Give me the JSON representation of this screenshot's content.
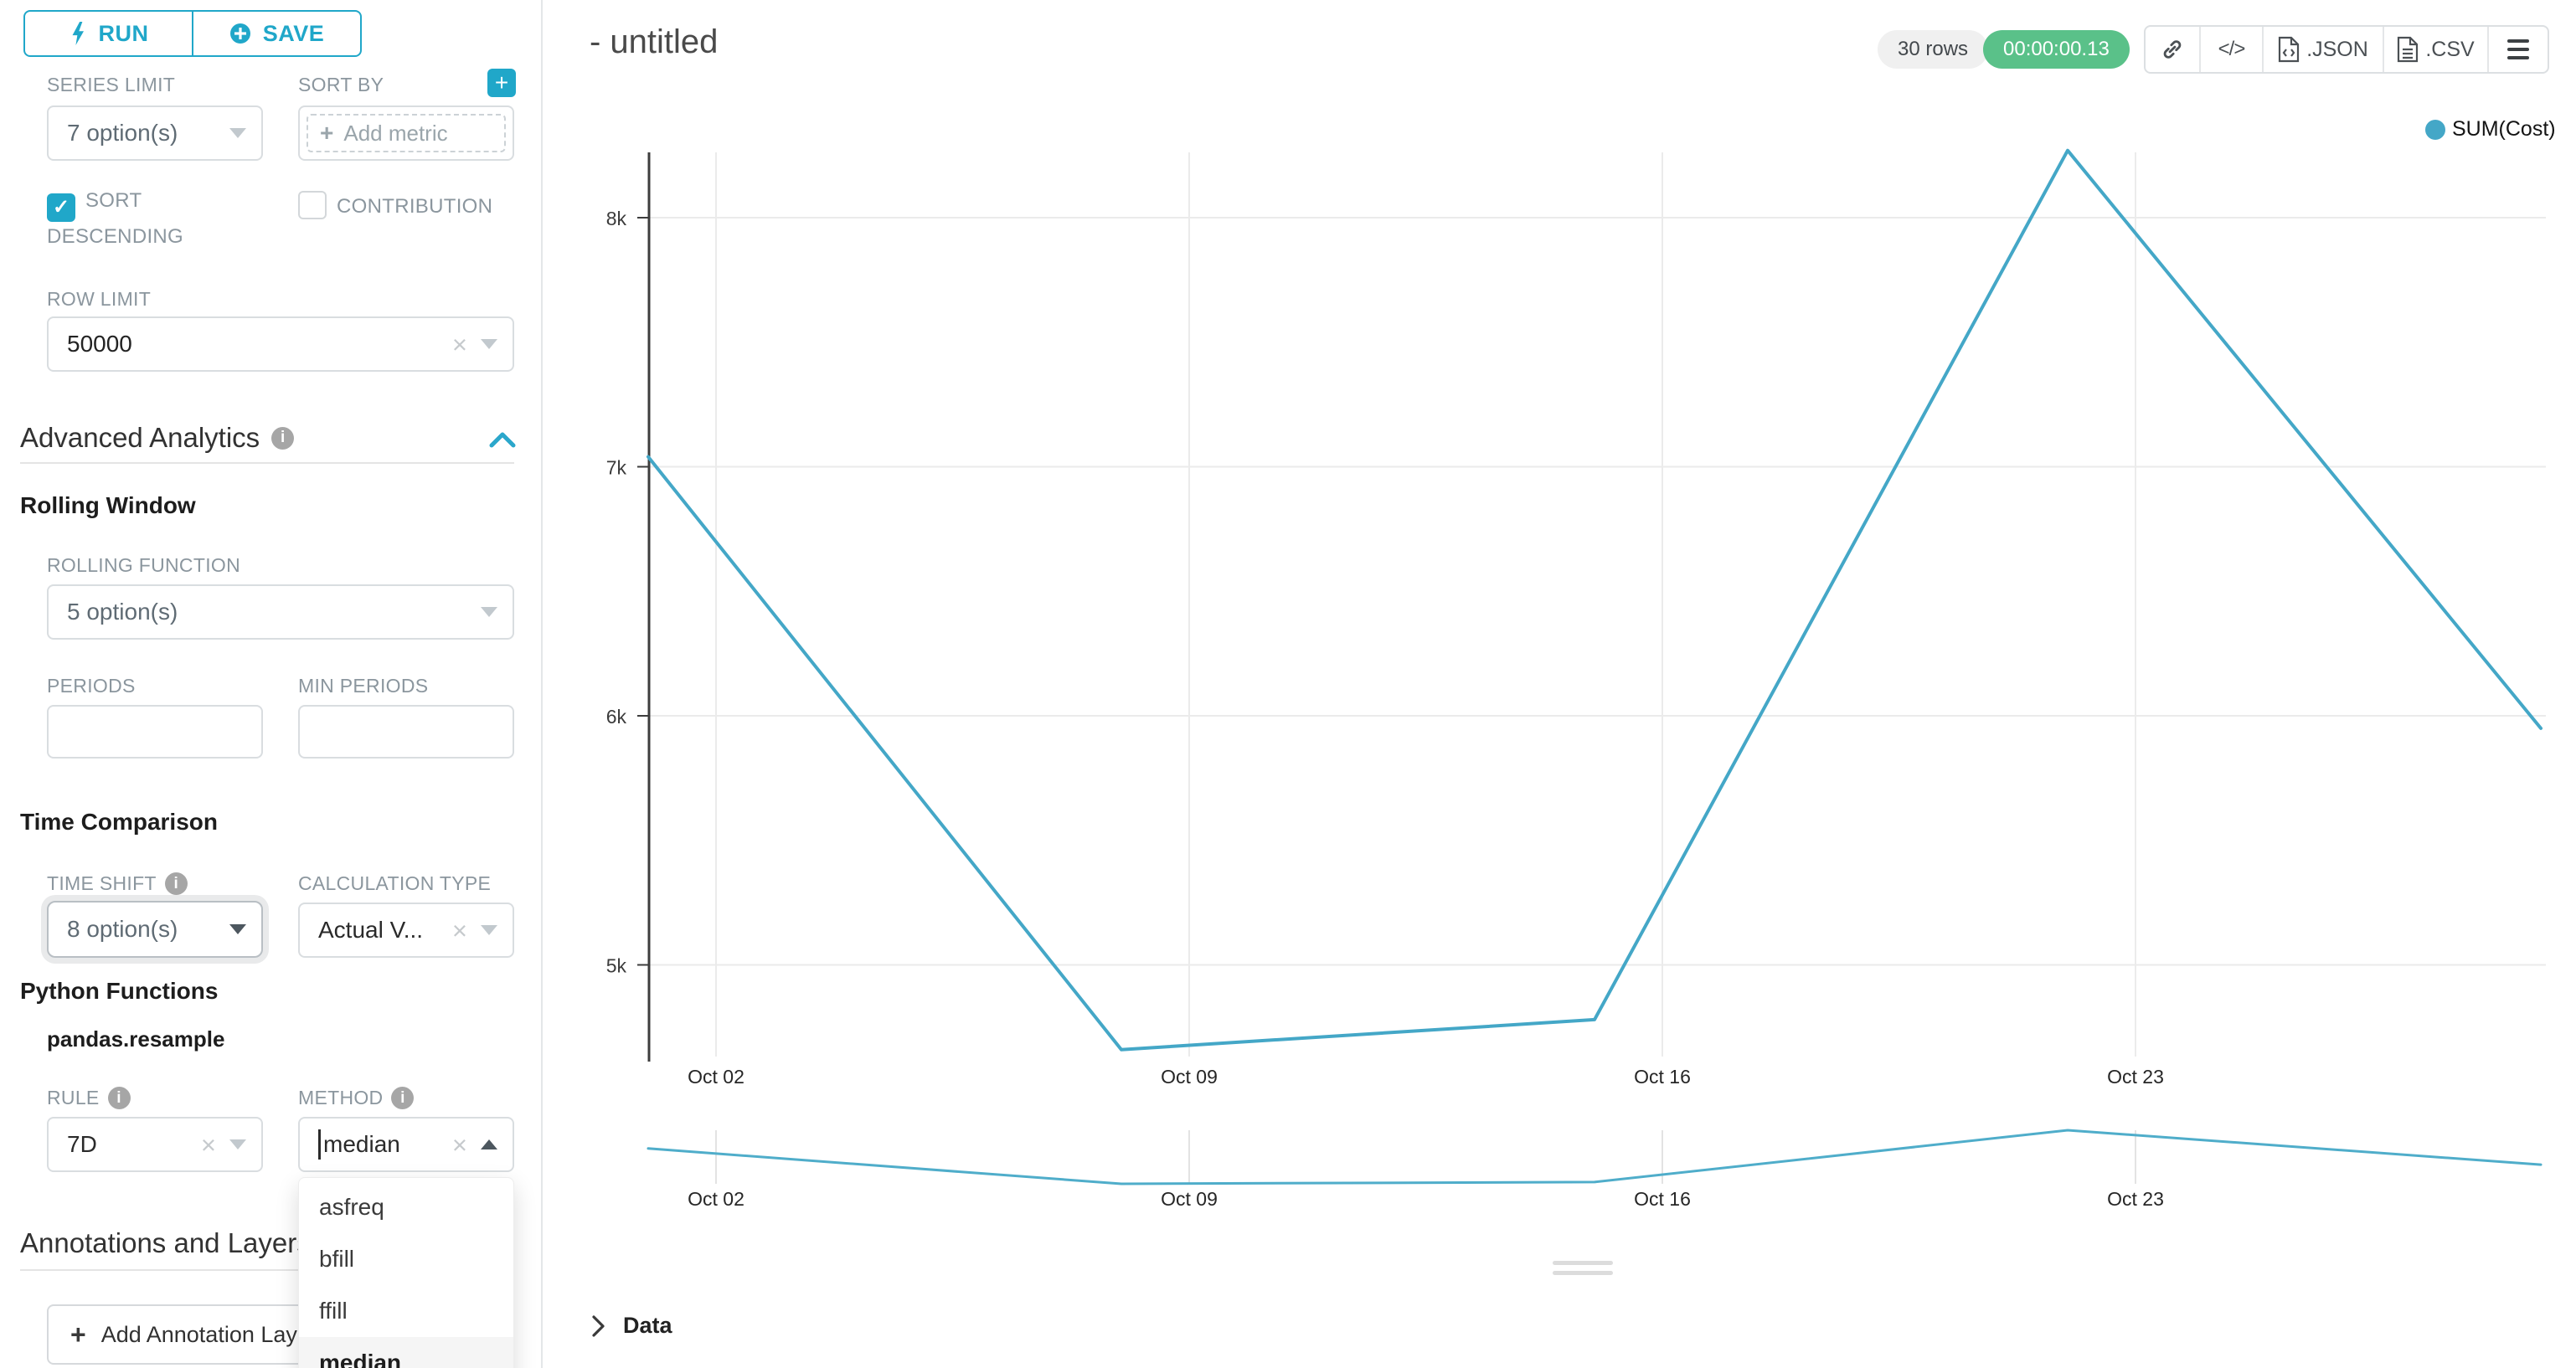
{
  "toolbar": {
    "run_label": "RUN",
    "save_label": "SAVE"
  },
  "query_controls": {
    "series_limit": {
      "label": "SERIES LIMIT",
      "value": "7 option(s)"
    },
    "sort_by": {
      "label": "SORT BY",
      "placeholder": "Add metric"
    },
    "sort_descending": {
      "label": "SORT DESCENDING",
      "checked": true
    },
    "contribution": {
      "label": "CONTRIBUTION",
      "checked": false
    },
    "row_limit": {
      "label": "ROW LIMIT",
      "value": "50000"
    }
  },
  "sections": {
    "advanced_analytics": {
      "title": "Advanced Analytics"
    },
    "rolling_window": {
      "title": "Rolling Window",
      "rolling_function": {
        "label": "ROLLING FUNCTION",
        "value": "5 option(s)"
      },
      "periods": {
        "label": "PERIODS",
        "value": ""
      },
      "min_periods": {
        "label": "MIN PERIODS",
        "value": ""
      }
    },
    "time_comparison": {
      "title": "Time Comparison",
      "time_shift": {
        "label": "TIME SHIFT",
        "value": "8 option(s)"
      },
      "calculation_type": {
        "label": "CALCULATION TYPE",
        "value": "Actual V..."
      }
    },
    "python_functions": {
      "title": "Python Functions",
      "subtitle": "pandas.resample",
      "rule": {
        "label": "RULE",
        "value": "7D"
      },
      "method": {
        "label": "METHOD",
        "value": "median",
        "options": [
          "asfreq",
          "bfill",
          "ffill",
          "median"
        ],
        "selected": "median"
      }
    },
    "annotations": {
      "title": "Annotations and Layers",
      "add_button_label": "Add Annotation Layer"
    }
  },
  "header": {
    "title": "- untitled",
    "rows_badge": "30 rows",
    "timer": "00:00:00.13",
    "json_label": ".JSON",
    "csv_label": ".CSV"
  },
  "data_panel": {
    "label": "Data"
  },
  "colors": {
    "accent": "#20a7c9",
    "line": "#44a7c7",
    "mini_line": "#4fadca",
    "timer_green": "#5ac189",
    "grid": "#ebebeb",
    "axis": "#3d3d3d"
  },
  "chart_data": {
    "type": "line",
    "title": "- untitled",
    "legend": [
      {
        "label": "SUM(Cost)",
        "color": "#44a7c7"
      }
    ],
    "x": [
      "Oct 01",
      "Oct 08",
      "Oct 15",
      "Oct 22",
      "Oct 29"
    ],
    "series": [
      {
        "name": "SUM(Cost)",
        "values": [
          7040,
          4660,
          4780,
          8270,
          5950
        ]
      }
    ],
    "x_axis_tick_labels": [
      "Oct 02",
      "Oct 09",
      "Oct 16",
      "Oct 23"
    ],
    "y_axis_ticks": [
      {
        "label": "8k",
        "value": 8000
      },
      {
        "label": "7k",
        "value": 7000
      },
      {
        "label": "6k",
        "value": 6000
      },
      {
        "label": "5k",
        "value": 5000
      }
    ],
    "ylim": [
      4550,
      8300
    ],
    "grid": true,
    "legend_position": "top-right",
    "has_mini_preview": true
  }
}
